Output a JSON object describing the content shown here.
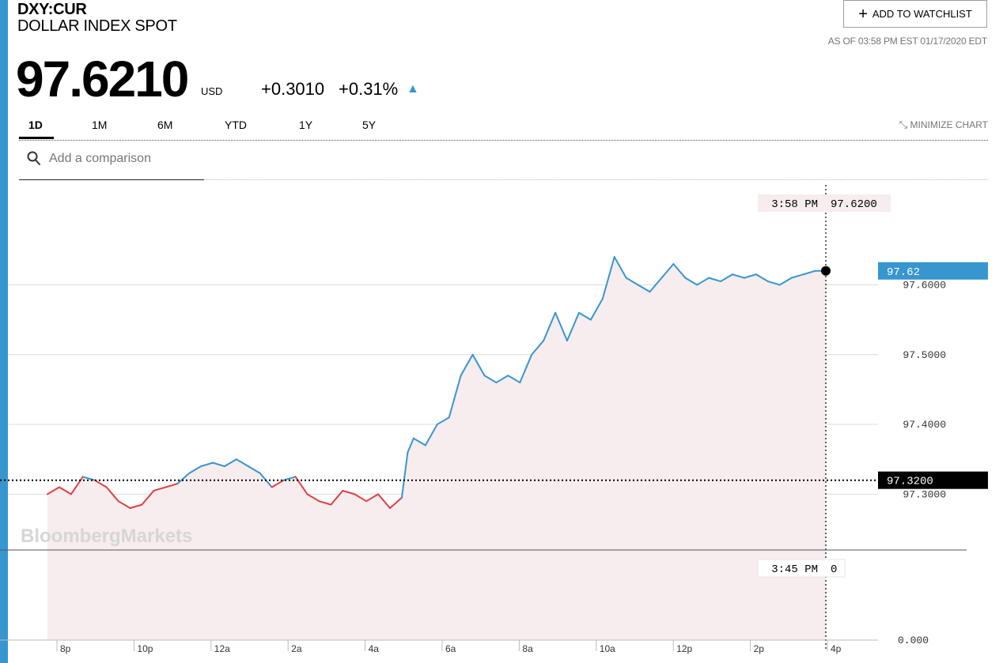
{
  "header": {
    "ticker": "DXY:CUR",
    "name": "DOLLAR INDEX SPOT",
    "price": "97.6210",
    "currency": "USD",
    "change": "+0.3010",
    "change_pct": "+0.31%",
    "watchlist_label": "ADD TO WATCHLIST",
    "as_of": "AS OF 03:58 PM EST 01/17/2020 EDT"
  },
  "tabs": [
    {
      "label": "1D",
      "active": true
    },
    {
      "label": "1M"
    },
    {
      "label": "6M"
    },
    {
      "label": "YTD"
    },
    {
      "label": "1Y"
    },
    {
      "label": "5Y"
    }
  ],
  "minimize_label": "MINIMIZE CHART",
  "comparison": {
    "placeholder": "Add a comparison"
  },
  "colors": {
    "up": "#3796cf",
    "down": "#e04040",
    "area": "#f7ecee",
    "accent": "#3796cf"
  },
  "chart_data": {
    "type": "line",
    "watermark": "BloombergMarkets",
    "x_ticks": [
      "8p",
      "10p",
      "12a",
      "2a",
      "4a",
      "6a",
      "8a",
      "10a",
      "12p",
      "2p",
      "4p"
    ],
    "y_ticks": [
      {
        "label": "97.6000",
        "value": 97.6
      },
      {
        "label": "97.5000",
        "value": 97.5
      },
      {
        "label": "97.4000",
        "value": 97.4
      },
      {
        "label": "97.3000",
        "value": 97.3
      }
    ],
    "ylim": [
      97.22,
      97.75
    ],
    "previous_close": {
      "label": "97.3200",
      "value": 97.32
    },
    "current": {
      "label": "97.62",
      "value": 97.62
    },
    "crosshair": {
      "time": "3:58 PM",
      "value": "97.6200"
    },
    "volume": {
      "time": "3:45 PM",
      "value": "0",
      "axis_label": "0.000"
    },
    "grid": true,
    "x": [
      "18:00",
      "18:20",
      "18:40",
      "19:00",
      "19:20",
      "19:40",
      "20:00",
      "20:20",
      "20:40",
      "21:00",
      "21:20",
      "21:40",
      "22:00",
      "22:20",
      "22:40",
      "23:00",
      "23:20",
      "23:40",
      "00:00",
      "00:20",
      "00:40",
      "01:00",
      "01:20",
      "01:40",
      "02:00",
      "02:20",
      "02:40",
      "03:00",
      "03:20",
      "03:40",
      "04:00",
      "04:10",
      "04:20",
      "04:40",
      "05:00",
      "05:20",
      "05:40",
      "06:00",
      "06:20",
      "06:40",
      "07:00",
      "07:20",
      "07:40",
      "08:00",
      "08:20",
      "08:40",
      "09:00",
      "09:20",
      "09:40",
      "10:00",
      "10:20",
      "10:40",
      "11:00",
      "11:20",
      "11:40",
      "12:00",
      "12:20",
      "12:40",
      "13:00",
      "13:20",
      "13:40",
      "14:00",
      "14:20",
      "14:40",
      "15:00",
      "15:20",
      "15:40",
      "15:58"
    ],
    "values": [
      97.3,
      97.31,
      97.3,
      97.325,
      97.32,
      97.31,
      97.29,
      97.28,
      97.285,
      97.305,
      97.31,
      97.315,
      97.33,
      97.34,
      97.345,
      97.34,
      97.35,
      97.34,
      97.33,
      97.31,
      97.32,
      97.325,
      97.3,
      97.29,
      97.285,
      97.305,
      97.3,
      97.29,
      97.3,
      97.28,
      97.295,
      97.36,
      97.38,
      97.37,
      97.4,
      97.41,
      97.47,
      97.5,
      97.47,
      97.46,
      97.47,
      97.46,
      97.5,
      97.52,
      97.56,
      97.52,
      97.56,
      97.55,
      97.58,
      97.64,
      97.61,
      97.6,
      97.59,
      97.61,
      97.63,
      97.61,
      97.6,
      97.61,
      97.605,
      97.615,
      97.61,
      97.615,
      97.605,
      97.6,
      97.61,
      97.615,
      97.62,
      97.62
    ]
  }
}
